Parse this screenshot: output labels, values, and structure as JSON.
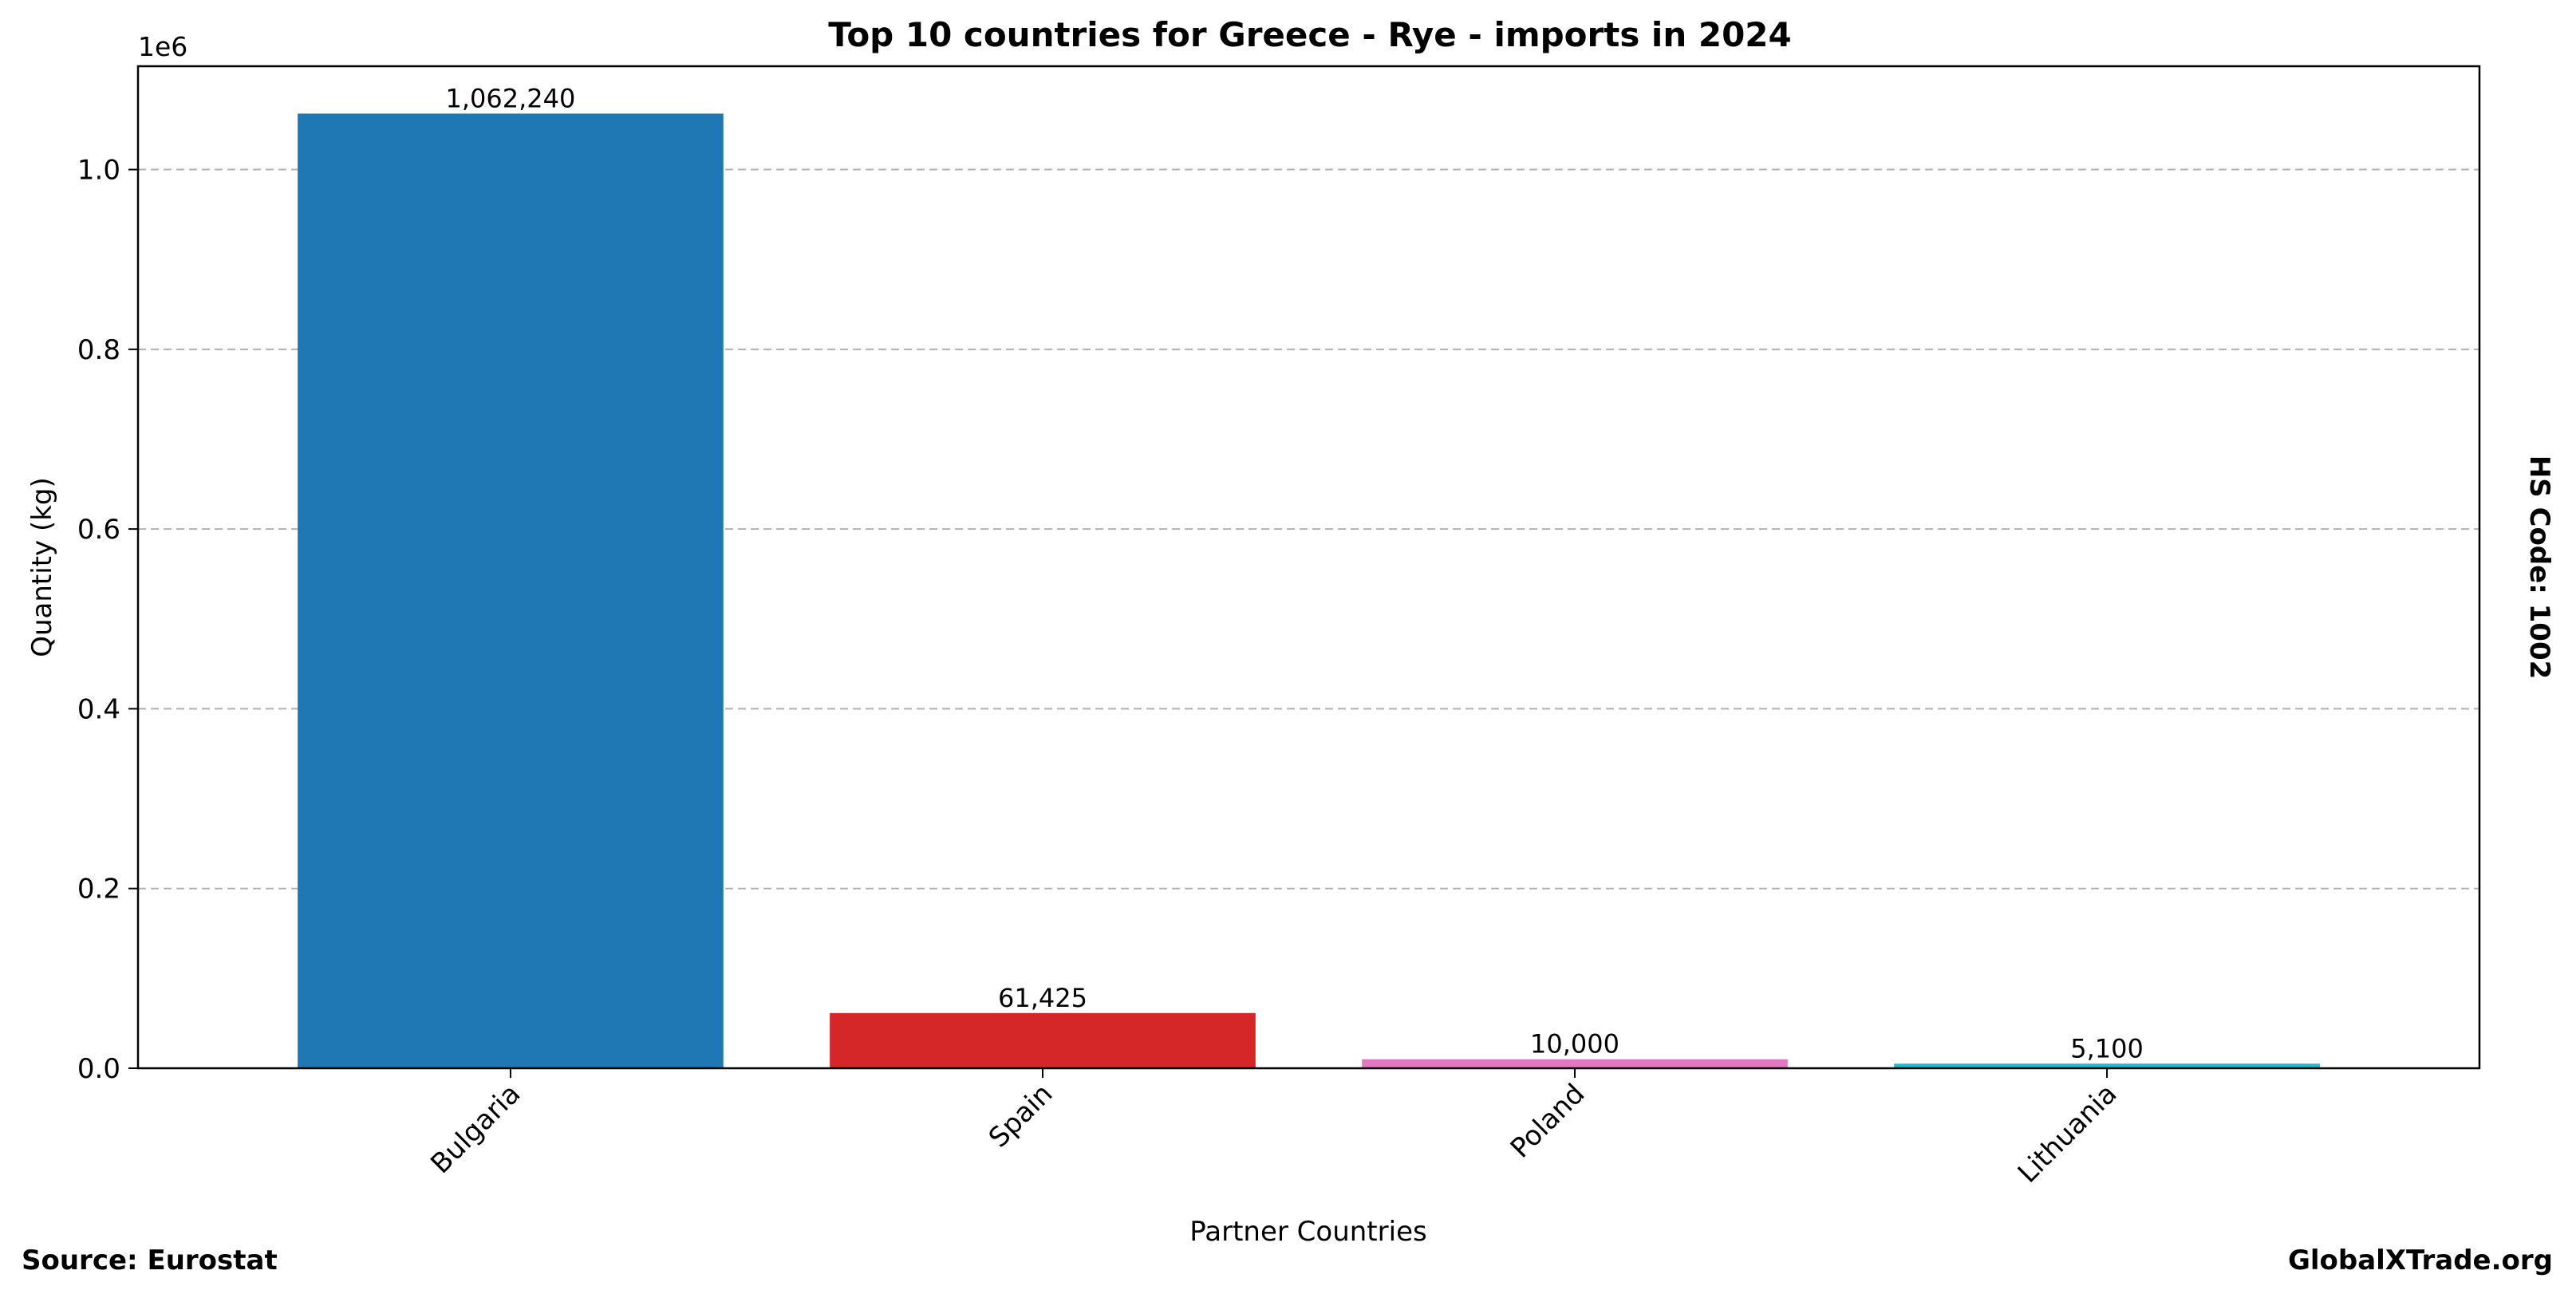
{
  "chart_data": {
    "type": "bar",
    "title": "Top 10 countries for Greece - Rye - imports in 2024",
    "xlabel": "Partner Countries",
    "ylabel": "Quantity (kg)",
    "y_offset_label": "1e6",
    "ylim": [
      0,
      1115000
    ],
    "y_ticks": [
      0,
      200000,
      400000,
      600000,
      800000,
      1000000
    ],
    "y_tick_labels": [
      "0.0",
      "0.2",
      "0.4",
      "0.6",
      "0.8",
      "1.0"
    ],
    "grid": "horizontal dashed",
    "categories": [
      "Bulgaria",
      "Spain",
      "Poland",
      "Lithuania"
    ],
    "values": [
      1062240,
      61425,
      10000,
      5100
    ],
    "value_labels": [
      "1,062,240",
      "61,425",
      "10,000",
      "5,100"
    ],
    "colors": [
      "#1f77b4",
      "#d62728",
      "#e377c2",
      "#17becf"
    ],
    "side_note": "HS Code: 1002"
  },
  "footer": {
    "source": "Source: Eurostat",
    "brand": "GlobalXTrade.org"
  }
}
